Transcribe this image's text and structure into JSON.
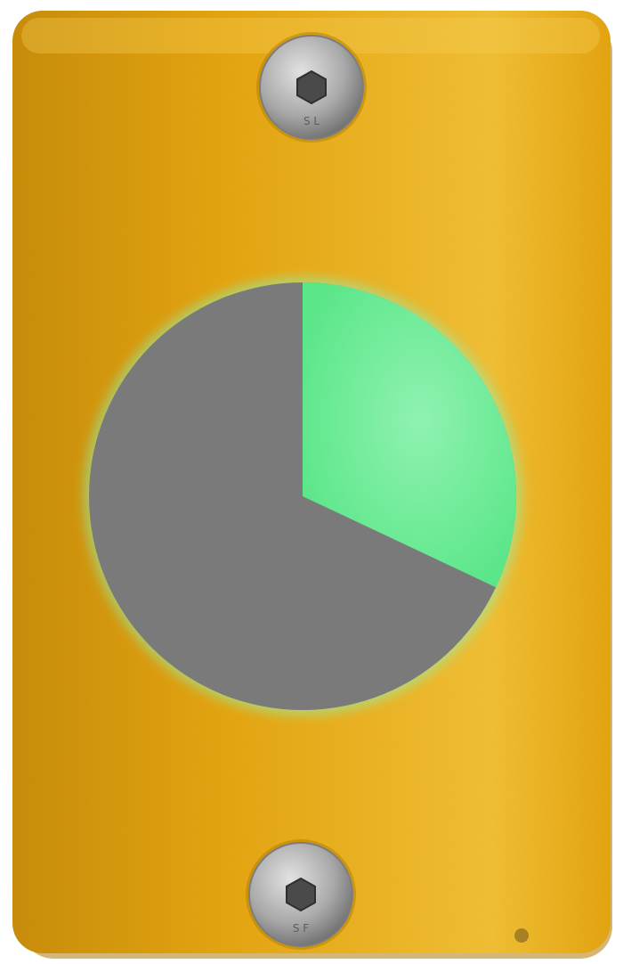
{
  "object": {
    "kind": "yellow button housing",
    "body_color": "#E8A512",
    "highlight_color": "#F6C23A",
    "shadow_color": "#C98B0C",
    "screws": [
      {
        "position": "top",
        "icon": "hex-socket-screw-icon",
        "stamp": "S L"
      },
      {
        "position": "bottom",
        "icon": "hex-socket-screw-icon",
        "stamp": "S F"
      }
    ],
    "screw_color": "#A8A8A8",
    "screw_socket_color": "#4A4A4A"
  },
  "indicator": {
    "kind": "circular progress light",
    "lit_fraction": 0.32,
    "lit_color": "#5CE68A",
    "glow_color": "#8FF2B0",
    "unlit_color": "#7A7A7A"
  }
}
